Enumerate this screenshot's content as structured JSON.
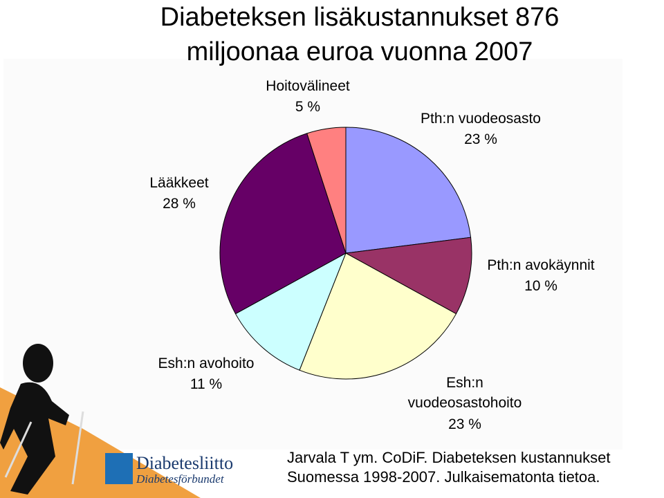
{
  "chart_data": {
    "type": "pie",
    "title": "Diabeteksen lisäkustannukset 876 miljoonaa euroa vuonna 2007",
    "categories": [
      "Pth:n vuodeosasto",
      "Pth:n avokäynnit",
      "Esh:n vuodeosastohoito",
      "Esh:n avohoito",
      "Lääkkeet",
      "Hoitovälineet"
    ],
    "values": [
      23,
      10,
      23,
      11,
      28,
      5
    ],
    "value_labels": [
      "23 %",
      "10 %",
      "23 %",
      "11 %",
      "28 %",
      "5 %"
    ],
    "colors": [
      "#9999ff",
      "#993366",
      "#ffffcc",
      "#ccffff",
      "#660066",
      "#ff8080"
    ]
  },
  "source": "Jarvala T ym. CoDiF. Diabeteksen kustannukset Suomessa 1998-2007. Julkaisematonta tietoa.",
  "logo": {
    "name": "Diabetesliitto",
    "subname": "Diabetesförbundet"
  }
}
